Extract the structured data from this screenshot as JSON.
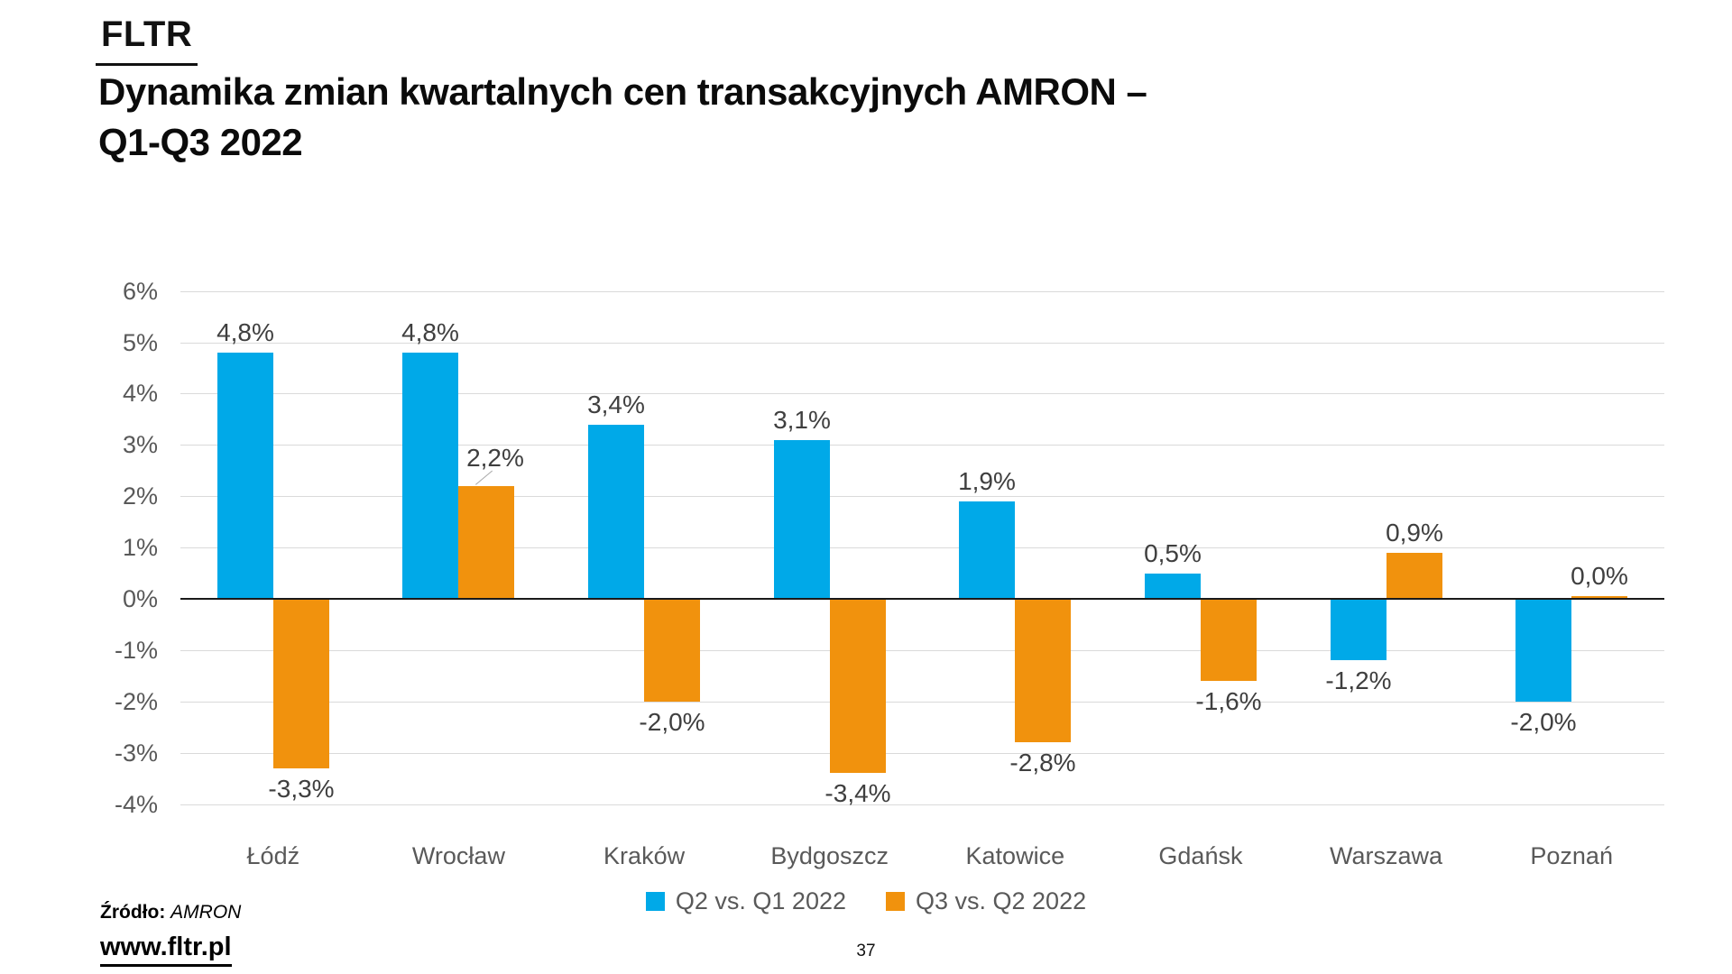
{
  "header": {
    "brand": "FLTR",
    "title_line1": "Dynamika zmian kwartalnych cen transakcyjnych AMRON –",
    "title_line2": "Q1-Q3 2022"
  },
  "chart_data": {
    "type": "bar",
    "title": "Dynamika zmian kwartalnych cen transakcyjnych AMRON – Q1-Q3 2022",
    "categories": [
      "Łódź",
      "Wrocław",
      "Kraków",
      "Bydgoszcz",
      "Katowice",
      "Gdańsk",
      "Warszawa",
      "Poznań"
    ],
    "series": [
      {
        "name": "Q2 vs. Q1 2022",
        "color": "#00A9E8",
        "values": [
          4.8,
          4.8,
          3.4,
          3.1,
          1.9,
          0.5,
          -1.2,
          -2.0
        ],
        "labels": [
          "4,8%",
          "4,8%",
          "3,4%",
          "3,1%",
          "1,9%",
          "0,5%",
          "-1,2%",
          "-2,0%"
        ]
      },
      {
        "name": "Q3 vs. Q2 2022",
        "color": "#F1920D",
        "values": [
          -3.3,
          2.2,
          -2.0,
          -3.4,
          -2.8,
          -1.6,
          0.9,
          0.0
        ],
        "labels": [
          "-3,3%",
          "2,2%",
          "-2,0%",
          "-3,4%",
          "-2,8%",
          "-1,6%",
          "0,9%",
          "0,0%"
        ]
      }
    ],
    "ylim": [
      -4,
      6
    ],
    "ytick_step": 1,
    "ytick_labels": [
      "6%",
      "5%",
      "4%",
      "3%",
      "2%",
      "1%",
      "0%",
      "-1%",
      "-2%",
      "-3%",
      "-4%"
    ],
    "grid": true,
    "legend_position": "bottom",
    "value_format": "percent_comma_decimal",
    "callouts": [
      {
        "series": 1,
        "index": 1,
        "dx": 10,
        "dy": -9,
        "leader": true
      }
    ],
    "colors": {
      "gridline": "#DADADA",
      "zero_line": "#1A1A1A",
      "tick_label": "#595959",
      "data_label": "#3F3F3F"
    }
  },
  "footer": {
    "source_label": "Źródło:",
    "source_value": "AMRON",
    "website": "www.fltr.pl",
    "page_number": "37"
  }
}
